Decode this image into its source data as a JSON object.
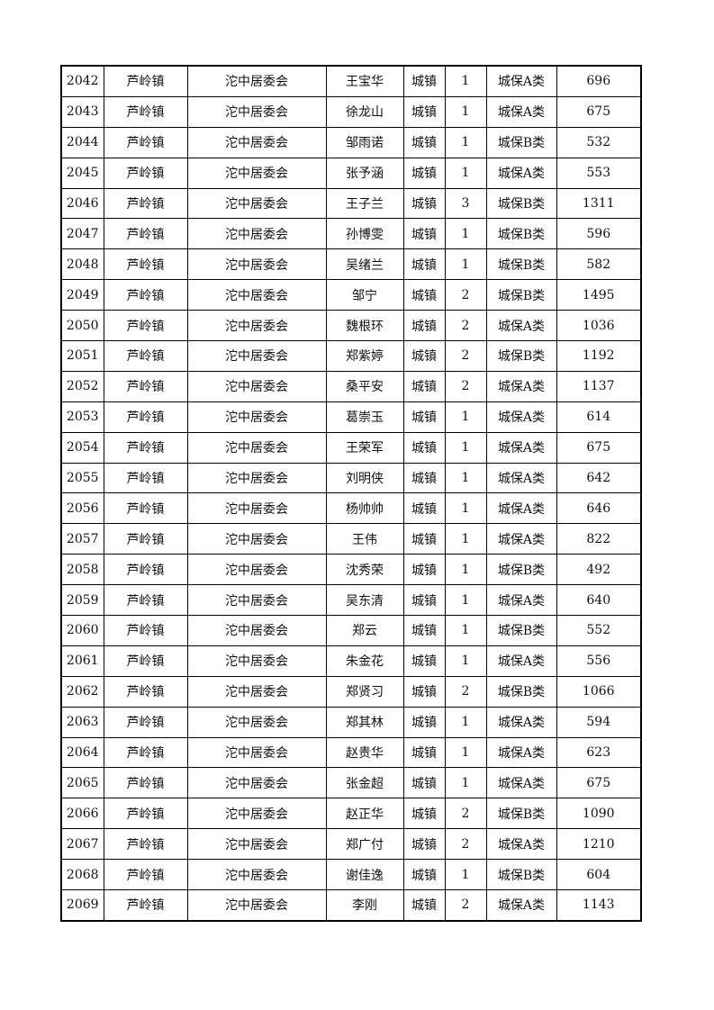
{
  "table": {
    "rows": [
      [
        "2042",
        "芦岭镇",
        "沱中居委会",
        "王宝华",
        "城镇",
        "1",
        "城保A类",
        "696"
      ],
      [
        "2043",
        "芦岭镇",
        "沱中居委会",
        "徐龙山",
        "城镇",
        "1",
        "城保A类",
        "675"
      ],
      [
        "2044",
        "芦岭镇",
        "沱中居委会",
        "邹雨诺",
        "城镇",
        "1",
        "城保B类",
        "532"
      ],
      [
        "2045",
        "芦岭镇",
        "沱中居委会",
        "张予涵",
        "城镇",
        "1",
        "城保A类",
        "553"
      ],
      [
        "2046",
        "芦岭镇",
        "沱中居委会",
        "王子兰",
        "城镇",
        "3",
        "城保B类",
        "1311"
      ],
      [
        "2047",
        "芦岭镇",
        "沱中居委会",
        "孙博雯",
        "城镇",
        "1",
        "城保B类",
        "596"
      ],
      [
        "2048",
        "芦岭镇",
        "沱中居委会",
        "吴绪兰",
        "城镇",
        "1",
        "城保B类",
        "582"
      ],
      [
        "2049",
        "芦岭镇",
        "沱中居委会",
        "邹宁",
        "城镇",
        "2",
        "城保B类",
        "1495"
      ],
      [
        "2050",
        "芦岭镇",
        "沱中居委会",
        "魏根环",
        "城镇",
        "2",
        "城保A类",
        "1036"
      ],
      [
        "2051",
        "芦岭镇",
        "沱中居委会",
        "郑紫婷",
        "城镇",
        "2",
        "城保B类",
        "1192"
      ],
      [
        "2052",
        "芦岭镇",
        "沱中居委会",
        "桑平安",
        "城镇",
        "2",
        "城保A类",
        "1137"
      ],
      [
        "2053",
        "芦岭镇",
        "沱中居委会",
        "葛崇玉",
        "城镇",
        "1",
        "城保A类",
        "614"
      ],
      [
        "2054",
        "芦岭镇",
        "沱中居委会",
        "王荣军",
        "城镇",
        "1",
        "城保A类",
        "675"
      ],
      [
        "2055",
        "芦岭镇",
        "沱中居委会",
        "刘明侠",
        "城镇",
        "1",
        "城保A类",
        "642"
      ],
      [
        "2056",
        "芦岭镇",
        "沱中居委会",
        "杨帅帅",
        "城镇",
        "1",
        "城保A类",
        "646"
      ],
      [
        "2057",
        "芦岭镇",
        "沱中居委会",
        "王伟",
        "城镇",
        "1",
        "城保A类",
        "822"
      ],
      [
        "2058",
        "芦岭镇",
        "沱中居委会",
        "沈秀荣",
        "城镇",
        "1",
        "城保B类",
        "492"
      ],
      [
        "2059",
        "芦岭镇",
        "沱中居委会",
        "吴东清",
        "城镇",
        "1",
        "城保A类",
        "640"
      ],
      [
        "2060",
        "芦岭镇",
        "沱中居委会",
        "郑云",
        "城镇",
        "1",
        "城保B类",
        "552"
      ],
      [
        "2061",
        "芦岭镇",
        "沱中居委会",
        "朱金花",
        "城镇",
        "1",
        "城保A类",
        "556"
      ],
      [
        "2062",
        "芦岭镇",
        "沱中居委会",
        "郑贤习",
        "城镇",
        "2",
        "城保B类",
        "1066"
      ],
      [
        "2063",
        "芦岭镇",
        "沱中居委会",
        "郑其林",
        "城镇",
        "1",
        "城保A类",
        "594"
      ],
      [
        "2064",
        "芦岭镇",
        "沱中居委会",
        "赵贵华",
        "城镇",
        "1",
        "城保A类",
        "623"
      ],
      [
        "2065",
        "芦岭镇",
        "沱中居委会",
        "张金超",
        "城镇",
        "1",
        "城保A类",
        "675"
      ],
      [
        "2066",
        "芦岭镇",
        "沱中居委会",
        "赵正华",
        "城镇",
        "2",
        "城保B类",
        "1090"
      ],
      [
        "2067",
        "芦岭镇",
        "沱中居委会",
        "郑广付",
        "城镇",
        "2",
        "城保A类",
        "1210"
      ],
      [
        "2068",
        "芦岭镇",
        "沱中居委会",
        "谢佳逸",
        "城镇",
        "1",
        "城保B类",
        "604"
      ],
      [
        "2069",
        "芦岭镇",
        "沱中居委会",
        "李刚",
        "城镇",
        "2",
        "城保A类",
        "1143"
      ]
    ]
  }
}
